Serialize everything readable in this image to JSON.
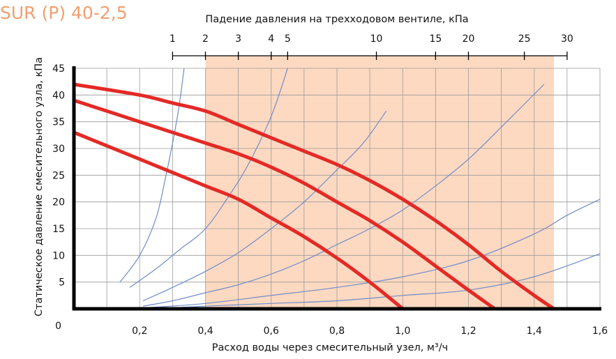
{
  "chart_data": {
    "type": "line",
    "title": "SUR (P) 40-2,5",
    "xlabel": "Расход воды через смесительный узел, м³/ч",
    "ylabel": "Статическое давление смесительного узла, кПа",
    "top_axis_label": "Падение давления на трехходовом вентиле, кПа",
    "xlim": [
      0,
      1.6
    ],
    "ylim": [
      0,
      45
    ],
    "x_ticks": [
      0.2,
      0.4,
      0.6,
      0.8,
      1.0,
      1.2,
      1.4,
      1.6
    ],
    "x_tick_labels": [
      "0,2",
      "0,4",
      "0,6",
      "0,8",
      "1,0",
      "1,2",
      "1,4",
      "1,6"
    ],
    "y_ticks": [
      0,
      5,
      10,
      15,
      20,
      25,
      30,
      35,
      40,
      45
    ],
    "y_tick_labels": [
      "0",
      "5",
      "10",
      "15",
      "20",
      "25",
      "30",
      "35",
      "40",
      "45"
    ],
    "grid": true,
    "top_axis": {
      "ticks": [
        1,
        2,
        3,
        4,
        5,
        10,
        15,
        20,
        25,
        30
      ],
      "tick_labels": [
        "1",
        "2",
        "3",
        "4",
        "5",
        "10",
        "15",
        "20",
        "25",
        "30"
      ],
      "flow_at_tick": [
        0.3,
        0.4,
        0.5,
        0.6,
        0.65,
        0.92,
        1.1,
        1.2,
        1.37,
        1.5
      ]
    },
    "recommended_range": {
      "x_from": 0.4,
      "x_to": 1.46,
      "color": "#fdd9c1"
    },
    "series": [
      {
        "x": [
          0,
          0.2,
          0.3,
          0.4,
          0.5,
          0.6,
          0.7,
          0.8,
          0.9,
          1.0,
          1.1,
          1.2,
          1.3,
          1.4,
          1.46
        ],
        "y": [
          42,
          40,
          38.5,
          37,
          34.5,
          32,
          29.5,
          27,
          24,
          20.5,
          16.5,
          12,
          7,
          2.5,
          0
        ],
        "color": "#e42a26"
      },
      {
        "x": [
          0,
          0.2,
          0.3,
          0.4,
          0.5,
          0.6,
          0.7,
          0.8,
          0.9,
          1.0,
          1.1,
          1.2,
          1.28
        ],
        "y": [
          39,
          35,
          33,
          31,
          29,
          26.5,
          23.5,
          20,
          16.5,
          12.5,
          8,
          3.5,
          0
        ],
        "color": "#e42a26"
      },
      {
        "x": [
          0,
          0.1,
          0.2,
          0.3,
          0.4,
          0.5,
          0.6,
          0.7,
          0.8,
          0.9,
          1.0
        ],
        "y": [
          33,
          30.5,
          28,
          25.5,
          23,
          20.5,
          17,
          13.5,
          9.5,
          5,
          0
        ],
        "color": "#e42a26"
      }
    ],
    "valve_curves": {
      "color": "#6f8cc8",
      "series": [
        {
          "x": [
            0.14,
            0.2,
            0.25,
            0.28,
            0.3,
            0.32,
            0.335
          ],
          "y": [
            5,
            10,
            17,
            25,
            31,
            38,
            45
          ]
        },
        {
          "x": [
            0.17,
            0.25,
            0.32,
            0.4,
            0.47,
            0.53,
            0.6,
            0.65
          ],
          "y": [
            4,
            7.5,
            11,
            15,
            21,
            27,
            36,
            45
          ]
        },
        {
          "x": [
            0.21,
            0.3,
            0.4,
            0.5,
            0.6,
            0.7,
            0.8,
            0.88,
            0.95
          ],
          "y": [
            1.5,
            4,
            7,
            10.5,
            15,
            20,
            26,
            31,
            37
          ]
        },
        {
          "x": [
            0.21,
            0.3,
            0.4,
            0.5,
            0.6,
            0.7,
            0.8,
            0.9,
            1.0,
            1.1,
            1.2,
            1.3,
            1.43
          ],
          "y": [
            0.5,
            1.5,
            3,
            4.5,
            6.5,
            9,
            12,
            15,
            18.5,
            23,
            28,
            34,
            42
          ]
        },
        {
          "x": [
            0.22,
            0.4,
            0.6,
            0.8,
            1.0,
            1.2,
            1.4,
            1.5,
            1.6
          ],
          "y": [
            0.2,
            1,
            2.5,
            4,
            6,
            9,
            14,
            17.5,
            20.5
          ]
        },
        {
          "x": [
            0.26,
            0.4,
            0.6,
            0.8,
            1.0,
            1.2,
            1.4,
            1.6
          ],
          "y": [
            0.05,
            0.5,
            1,
            1.5,
            2.5,
            3.5,
            6,
            10.3
          ]
        }
      ]
    }
  }
}
